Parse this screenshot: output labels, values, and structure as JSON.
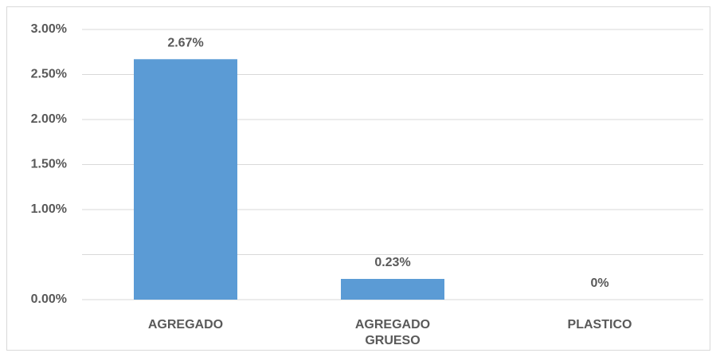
{
  "chart_data": {
    "type": "bar",
    "categories": [
      "AGREGADO",
      "AGREGADO GRUESO",
      "PLASTICO"
    ],
    "values": [
      2.67,
      0.23,
      0
    ],
    "value_labels": [
      "2.67%",
      "0.23%",
      "0%"
    ],
    "color": "#5b9bd5",
    "ylim": [
      0,
      3
    ],
    "yticks": [
      {
        "value": 0,
        "label": "0.00%"
      },
      {
        "value": 0.5,
        "label": null
      },
      {
        "value": 1,
        "label": "1.00%"
      },
      {
        "value": 1.5,
        "label": "1.50%"
      },
      {
        "value": 2,
        "label": "2.00%"
      },
      {
        "value": 2.5,
        "label": "2.50%"
      },
      {
        "value": 3,
        "label": "3.00%"
      }
    ],
    "grid": true
  }
}
